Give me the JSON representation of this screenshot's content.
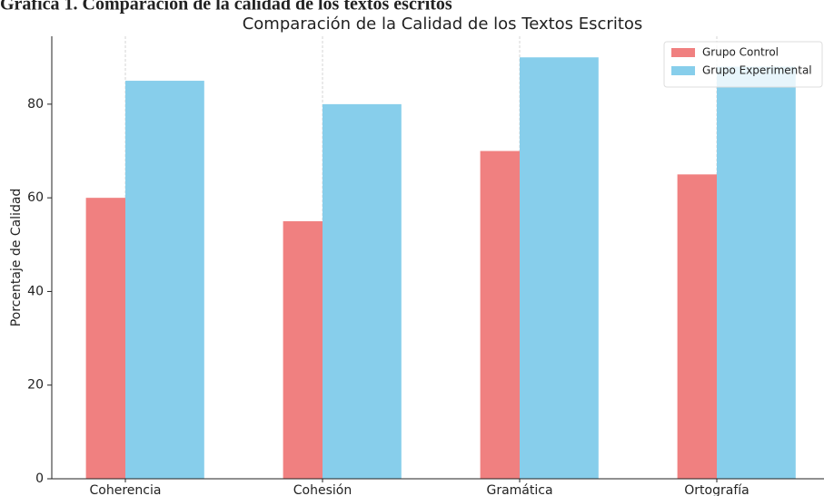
{
  "caption": "Gráfica 1. Comparación de la calidad de los textos escritos",
  "chart_data": {
    "type": "bar",
    "title": "Comparación de la Calidad de los Textos Escritos",
    "y_label": "Porcentaje de Calidad",
    "categories": [
      "Coherencia",
      "Cohesión",
      "Gramática",
      "Ortografía"
    ],
    "series": [
      {
        "name": "Grupo Control",
        "color": "#f08080",
        "values": [
          60,
          55,
          70,
          65
        ]
      },
      {
        "name": "Grupo Experimental",
        "color": "#87ceeb",
        "values": [
          85,
          80,
          90,
          88
        ]
      }
    ],
    "ylim": [
      0,
      94.5
    ],
    "yticks": [
      0,
      20,
      40,
      60,
      80
    ],
    "grid": "x",
    "legend": "upper right"
  }
}
